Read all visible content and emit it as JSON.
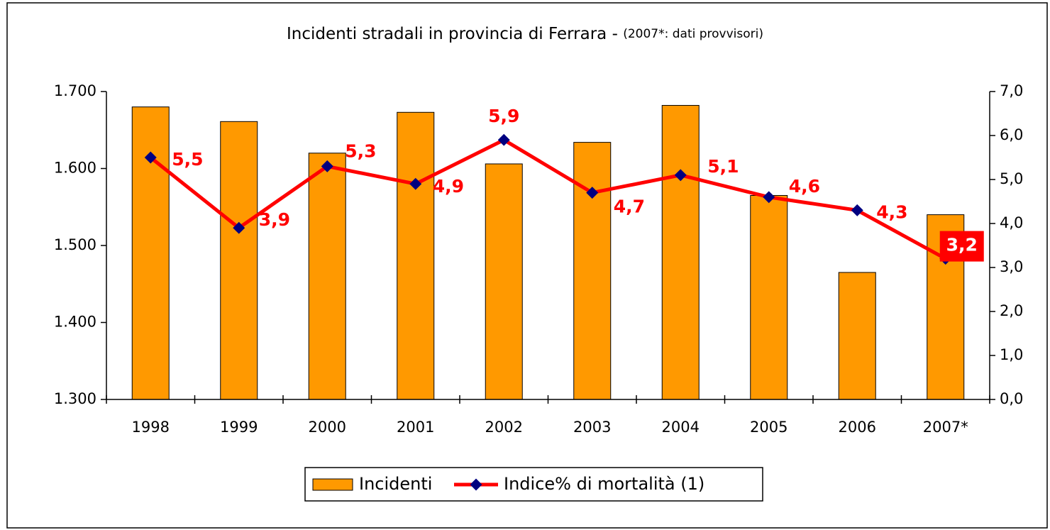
{
  "chart_data": {
    "type": "bar+line",
    "title": "Incidenti stradali in provincia di Ferrara - ",
    "subtitle": "(2007*: dati provvisori)",
    "categories": [
      "1998",
      "1999",
      "2000",
      "2001",
      "2002",
      "2003",
      "2004",
      "2005",
      "2006",
      "2007*"
    ],
    "series": [
      {
        "name": "Incidenti",
        "type": "bar",
        "color": "#ff9900",
        "values": [
          1680,
          1661,
          1620,
          1673,
          1606,
          1634,
          1682,
          1565,
          1465,
          1540
        ]
      },
      {
        "name": "Indice% di mortalità (1)",
        "type": "line",
        "axis": "y2",
        "color": "#ff0000",
        "marker_color": "#000080",
        "values": [
          5.5,
          3.9,
          5.3,
          4.9,
          5.9,
          4.7,
          5.1,
          4.6,
          4.3,
          3.2
        ],
        "value_labels": [
          "5,5",
          "3,9",
          "5,3",
          "4,9",
          "5,9",
          "4,7",
          "5,1",
          "4,6",
          "4,3",
          "3,2"
        ]
      }
    ],
    "ylim": [
      1300,
      1700
    ],
    "yticks": [
      {
        "value": 1300,
        "label": "1.300"
      },
      {
        "value": 1400,
        "label": "1.400"
      },
      {
        "value": 1500,
        "label": "1.500"
      },
      {
        "value": 1600,
        "label": "1.600"
      },
      {
        "value": 1700,
        "label": "1.700"
      }
    ],
    "y2lim": [
      0,
      7
    ],
    "y2ticks": [
      {
        "value": 0,
        "label": "0,0"
      },
      {
        "value": 1,
        "label": "1,0"
      },
      {
        "value": 2,
        "label": "2,0"
      },
      {
        "value": 3,
        "label": "3,0"
      },
      {
        "value": 4,
        "label": "4,0"
      },
      {
        "value": 5,
        "label": "5,0"
      },
      {
        "value": 6,
        "label": "6,0"
      },
      {
        "value": 7,
        "label": "7,0"
      }
    ],
    "legend": "bottom"
  }
}
